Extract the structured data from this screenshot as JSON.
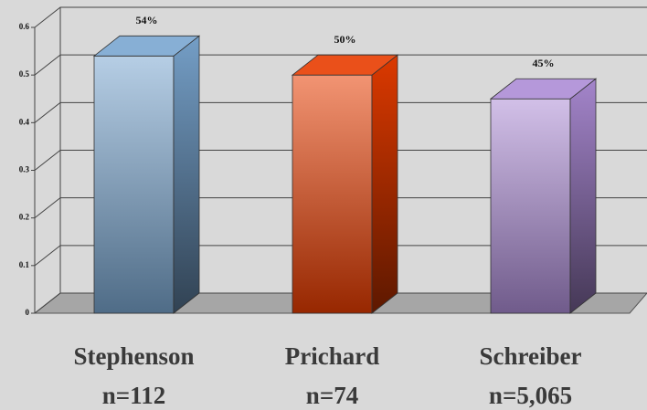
{
  "chart_data": {
    "type": "bar",
    "categories": [
      "Stephenson",
      "Prichard",
      "Schreiber"
    ],
    "sample_sizes": [
      "n=112",
      "n=74",
      "n=5,065"
    ],
    "values": [
      0.54,
      0.5,
      0.45
    ],
    "value_labels": [
      "54%",
      "50%",
      "45%"
    ],
    "colors": [
      "#7aa6d0",
      "#e83c00",
      "#ad8cd6"
    ],
    "ylim": [
      0,
      0.6
    ],
    "yticks": [
      0,
      0.1,
      0.2,
      0.3,
      0.4,
      0.5,
      0.6
    ],
    "grid": true
  }
}
